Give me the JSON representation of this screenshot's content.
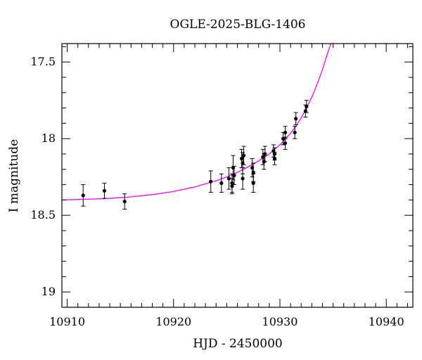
{
  "chart_data": {
    "type": "scatter",
    "title": "OGLE-2025-BLG-1406",
    "xlabel": "HJD - 2450000",
    "ylabel": "I magnitude",
    "xlim": [
      10909.5,
      10942.5
    ],
    "ylim": [
      19.1,
      17.38
    ],
    "y_inverted": true,
    "grid": false,
    "x_ticks": [
      10910,
      10920,
      10930,
      10940
    ],
    "x_tick_labels": [
      "10910",
      "10920",
      "10930",
      "10940"
    ],
    "y_ticks": [
      17.5,
      18,
      18.5,
      19
    ],
    "y_tick_labels": [
      "17.5",
      "18",
      "18.5",
      "19"
    ],
    "point_color": "#000000",
    "model_color": "#ff00ff",
    "points": [
      {
        "x": 10911.5,
        "y": 18.37,
        "err": 0.07
      },
      {
        "x": 10913.5,
        "y": 18.34,
        "err": 0.05
      },
      {
        "x": 10915.4,
        "y": 18.41,
        "err": 0.05
      },
      {
        "x": 10923.5,
        "y": 18.28,
        "err": 0.07
      },
      {
        "x": 10924.5,
        "y": 18.29,
        "err": 0.06
      },
      {
        "x": 10925.2,
        "y": 18.26,
        "err": 0.07
      },
      {
        "x": 10925.5,
        "y": 18.29,
        "err": 0.06
      },
      {
        "x": 10925.5,
        "y": 18.31,
        "err": 0.05
      },
      {
        "x": 10925.6,
        "y": 18.19,
        "err": 0.08
      },
      {
        "x": 10925.7,
        "y": 18.24,
        "err": 0.06
      },
      {
        "x": 10926.4,
        "y": 18.13,
        "err": 0.06
      },
      {
        "x": 10926.5,
        "y": 18.16,
        "err": 0.07
      },
      {
        "x": 10926.5,
        "y": 18.26,
        "err": 0.07
      },
      {
        "x": 10926.6,
        "y": 18.11,
        "err": 0.06
      },
      {
        "x": 10927.4,
        "y": 18.19,
        "err": 0.06
      },
      {
        "x": 10927.5,
        "y": 18.22,
        "err": 0.06
      },
      {
        "x": 10927.5,
        "y": 18.29,
        "err": 0.06
      },
      {
        "x": 10928.4,
        "y": 18.12,
        "err": 0.05
      },
      {
        "x": 10928.5,
        "y": 18.15,
        "err": 0.05
      },
      {
        "x": 10928.6,
        "y": 18.1,
        "err": 0.05
      },
      {
        "x": 10929.4,
        "y": 18.08,
        "err": 0.04
      },
      {
        "x": 10929.5,
        "y": 18.1,
        "err": 0.04
      },
      {
        "x": 10929.5,
        "y": 18.13,
        "err": 0.04
      },
      {
        "x": 10930.3,
        "y": 18.0,
        "err": 0.04
      },
      {
        "x": 10930.5,
        "y": 17.96,
        "err": 0.04
      },
      {
        "x": 10930.5,
        "y": 18.03,
        "err": 0.04
      },
      {
        "x": 10931.4,
        "y": 17.96,
        "err": 0.04
      },
      {
        "x": 10931.5,
        "y": 17.87,
        "err": 0.04
      },
      {
        "x": 10932.4,
        "y": 17.82,
        "err": 0.04
      },
      {
        "x": 10932.5,
        "y": 17.79,
        "err": 0.04
      }
    ],
    "model": {
      "name": "",
      "x": [
        10909.5,
        10912,
        10914,
        10916,
        10918,
        10920,
        10922,
        10924,
        10925,
        10926,
        10927,
        10928,
        10929,
        10930,
        10930.5,
        10931,
        10931.5,
        10932,
        10932.5,
        10933,
        10933.5,
        10934,
        10934.5,
        10934.8
      ],
      "y": [
        18.4,
        18.395,
        18.39,
        18.38,
        18.365,
        18.345,
        18.315,
        18.275,
        18.25,
        18.22,
        18.185,
        18.145,
        18.1,
        18.04,
        18.005,
        17.965,
        17.92,
        17.865,
        17.8,
        17.73,
        17.645,
        17.55,
        17.44,
        17.38
      ]
    }
  }
}
